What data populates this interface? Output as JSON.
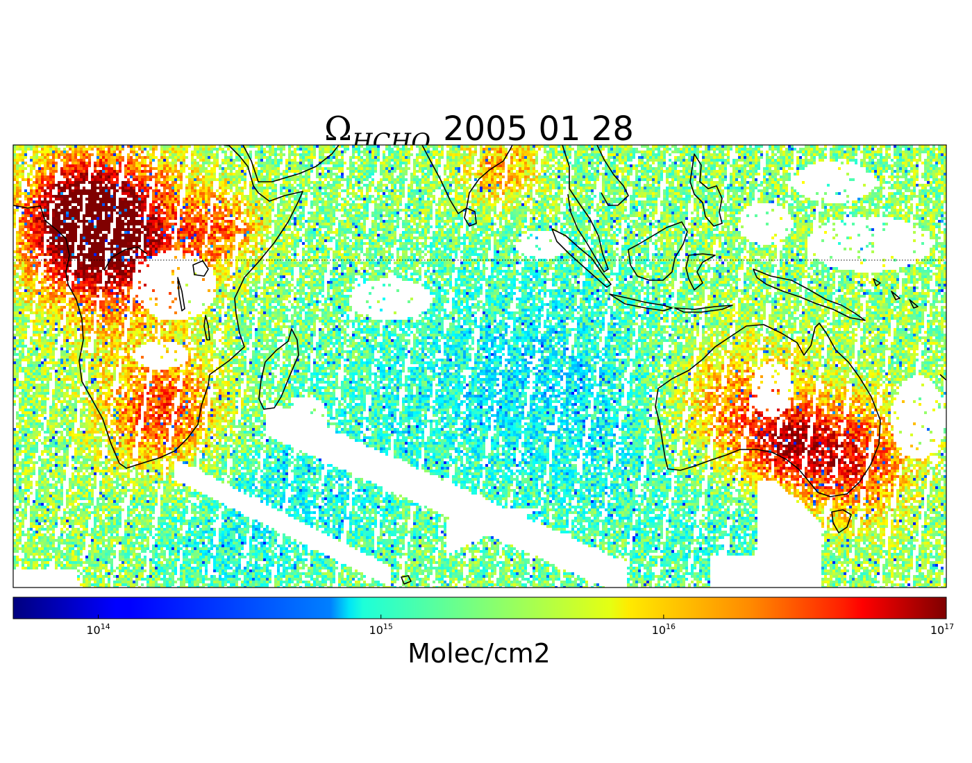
{
  "title": {
    "symbol": "Ω",
    "subscript": "HCHO",
    "date": "2005 01 28"
  },
  "map": {
    "projection": "cylindrical",
    "lon_range": [
      0,
      180
    ],
    "lat_range": [
      -55,
      30
    ],
    "equator_line": {
      "lat": 0,
      "style": "dotted"
    },
    "coastlines": true,
    "colormap": "jet",
    "value_scale": "log",
    "regions_high_values": [
      "Central Africa",
      "Southern Africa",
      "Eastern Australia"
    ]
  },
  "colorbar": {
    "colormap": "jet",
    "scale": "log",
    "range": [
      50000000000000.0,
      1e+17
    ],
    "ticks": [
      {
        "base": "10",
        "exp": "14",
        "value": 100000000000000.0
      },
      {
        "base": "10",
        "exp": "15",
        "value": 1000000000000000.0
      },
      {
        "base": "10",
        "exp": "16",
        "value": 1e+16
      },
      {
        "base": "10",
        "exp": "17",
        "value": 1e+17
      }
    ],
    "label": "Molec/cm2"
  }
}
